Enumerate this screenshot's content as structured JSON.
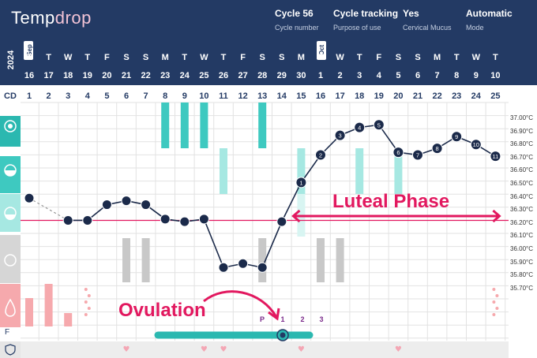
{
  "app": {
    "logo_text": "Temp",
    "logo_accent": "drop"
  },
  "header_meta": [
    {
      "value": "Cycle 56",
      "label": "Cycle number"
    },
    {
      "value": "Cycle tracking",
      "label": "Purpose of use"
    },
    {
      "value": "Yes",
      "label": "Cervical Mucus"
    },
    {
      "value": "Automatic",
      "label": "Mode"
    }
  ],
  "year": "2024",
  "months": [
    "Sep",
    "Oct"
  ],
  "days": [
    {
      "dow": "T",
      "dom": "16",
      "cd": "1"
    },
    {
      "dow": "T",
      "dom": "17",
      "cd": "2"
    },
    {
      "dow": "W",
      "dom": "18",
      "cd": "3"
    },
    {
      "dow": "T",
      "dom": "19",
      "cd": "4"
    },
    {
      "dow": "F",
      "dom": "20",
      "cd": "5"
    },
    {
      "dow": "S",
      "dom": "21",
      "cd": "6"
    },
    {
      "dow": "S",
      "dom": "22",
      "cd": "7"
    },
    {
      "dow": "M",
      "dom": "23",
      "cd": "8"
    },
    {
      "dow": "T",
      "dom": "24",
      "cd": "9"
    },
    {
      "dow": "W",
      "dom": "25",
      "cd": "10"
    },
    {
      "dow": "T",
      "dom": "26",
      "cd": "11"
    },
    {
      "dow": "F",
      "dom": "27",
      "cd": "12"
    },
    {
      "dow": "S",
      "dom": "28",
      "cd": "13"
    },
    {
      "dow": "S",
      "dom": "29",
      "cd": "14"
    },
    {
      "dow": "M",
      "dom": "30",
      "cd": "15"
    },
    {
      "dow": "T",
      "dom": "1",
      "cd": "16"
    },
    {
      "dow": "W",
      "dom": "2",
      "cd": "17"
    },
    {
      "dow": "T",
      "dom": "3",
      "cd": "18"
    },
    {
      "dow": "F",
      "dom": "4",
      "cd": "19"
    },
    {
      "dow": "S",
      "dom": "5",
      "cd": "20"
    },
    {
      "dow": "S",
      "dom": "6",
      "cd": "21"
    },
    {
      "dow": "M",
      "dom": "7",
      "cd": "22"
    },
    {
      "dow": "T",
      "dom": "8",
      "cd": "23"
    },
    {
      "dow": "W",
      "dom": "9",
      "cd": "24"
    },
    {
      "dow": "T",
      "dom": "10",
      "cd": "25"
    }
  ],
  "cd_label": "CD",
  "f_label": "F",
  "chart_data": {
    "type": "line",
    "y_ticks": [
      "37.00°C",
      "36.90°C",
      "36.80°C",
      "36.70°C",
      "36.60°C",
      "36.50°C",
      "36.40°C",
      "36.30°C",
      "36.20°C",
      "36.10°C",
      "36.00°C",
      "35.90°C",
      "35.80°C",
      "35.70°C"
    ],
    "ylim": [
      35.65,
      37.05
    ],
    "coverline": 36.22,
    "temperatures": [
      36.39,
      null,
      36.22,
      36.22,
      36.34,
      36.37,
      36.34,
      36.23,
      36.21,
      36.23,
      35.86,
      35.89,
      35.86,
      36.21,
      36.51,
      36.72,
      36.87,
      36.93,
      36.95,
      36.74,
      36.72,
      36.77,
      36.86,
      36.8,
      36.71
    ],
    "labels": [
      "",
      "",
      "",
      "",
      "",
      "",
      "",
      "",
      "",
      "",
      "",
      "",
      "",
      "",
      "1",
      "2",
      "3",
      "4",
      "5",
      "6",
      "7",
      "8",
      "9",
      "10",
      "11"
    ],
    "accent": "#e2185f",
    "line_color": "#1b2a4a"
  },
  "phases": {
    "luteal": "Luteal Phase",
    "ovulation": "Ovulation"
  },
  "ovulation_markers": [
    "P",
    "1",
    "2",
    "3"
  ],
  "icons": [
    "peak-mucus-icon",
    "creamy-mucus-icon",
    "sticky-mucus-icon",
    "dry-icon",
    "period-drop-icon",
    "shield-icon"
  ],
  "colors": {
    "header": "#233a64",
    "teal": "#3ec9c0",
    "teal_light": "#a6e8e2",
    "gray": "#c8c8c8",
    "pink": "#f6a9ad",
    "accent": "#e2185f"
  }
}
